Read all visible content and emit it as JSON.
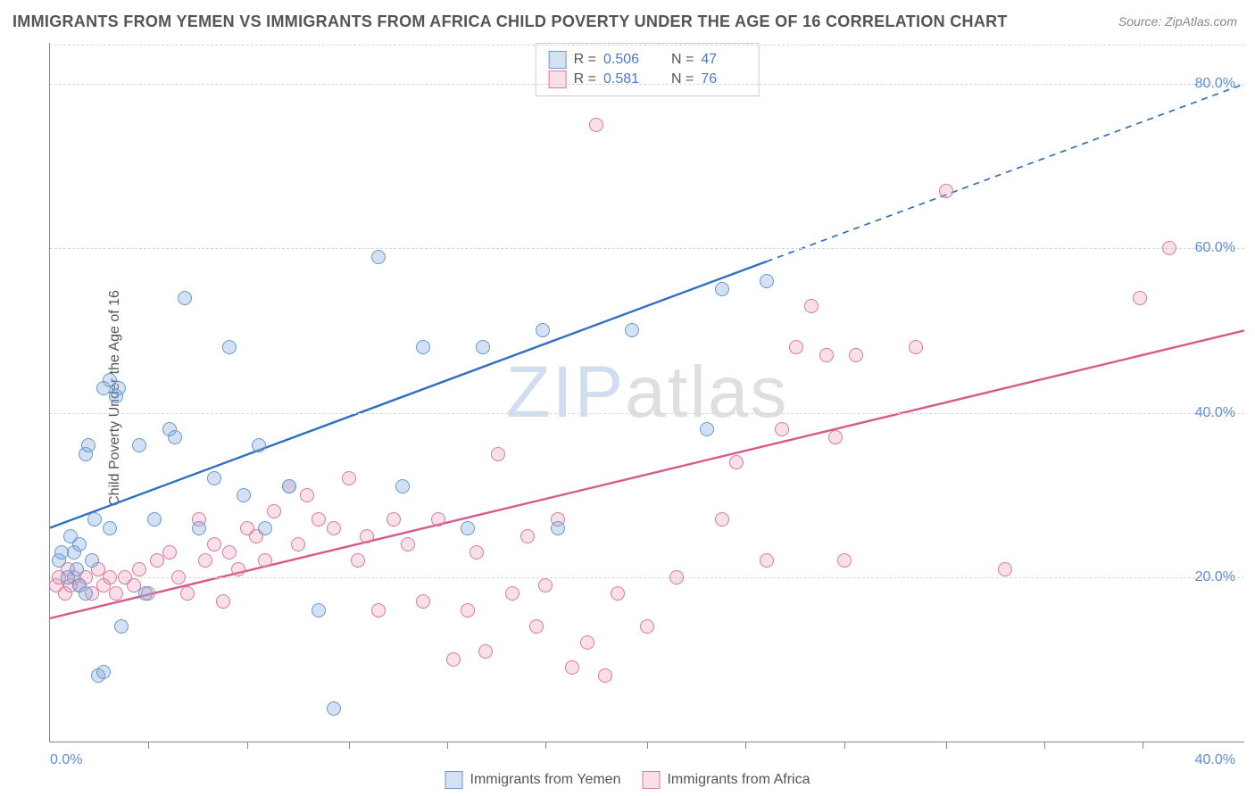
{
  "title": "IMMIGRANTS FROM YEMEN VS IMMIGRANTS FROM AFRICA CHILD POVERTY UNDER THE AGE OF 16 CORRELATION CHART",
  "source": "Source: ZipAtlas.com",
  "y_axis_label": "Child Poverty Under the Age of 16",
  "watermark_a": "ZIP",
  "watermark_b": "atlas",
  "chart": {
    "type": "scatter",
    "background_color": "#ffffff",
    "grid_color": "#d8d8d8",
    "axis_color": "#888888",
    "tick_label_color": "#5b8dd6",
    "tick_label_fontsize": 16,
    "title_fontsize": 18,
    "title_color": "#555555",
    "xlim": [
      0,
      40
    ],
    "ylim": [
      0,
      85
    ],
    "y_ticks": [
      20,
      40,
      60,
      80
    ],
    "y_tick_labels": [
      "20.0%",
      "40.0%",
      "60.0%",
      "80.0%"
    ],
    "x_ticks": [
      3.3,
      6.6,
      10,
      13.3,
      16.6,
      20,
      23.3,
      26.6,
      30,
      33.3,
      36.6
    ],
    "x_end_labels": [
      "0.0%",
      "40.0%"
    ],
    "marker_radius": 8,
    "marker_stroke_width": 1.2,
    "series": [
      {
        "name": "Immigrants from Yemen",
        "fill": "rgba(130,170,220,0.35)",
        "stroke": "#6699cc",
        "trend_color": "#2f6fc2",
        "trend_width": 2.4,
        "trend_dash_after_x": 24,
        "r_label": "R =",
        "r_value": "0.506",
        "n_label": "N =",
        "n_value": "47",
        "trend": {
          "x1": 0,
          "y1": 26,
          "x2": 40,
          "y2": 80
        },
        "points": [
          [
            0.3,
            22
          ],
          [
            0.4,
            23
          ],
          [
            0.6,
            20
          ],
          [
            0.7,
            25
          ],
          [
            0.8,
            23
          ],
          [
            0.9,
            21
          ],
          [
            1.0,
            24
          ],
          [
            1.2,
            35
          ],
          [
            1.3,
            36
          ],
          [
            1.5,
            27
          ],
          [
            1.8,
            43
          ],
          [
            2.0,
            44
          ],
          [
            2.2,
            42
          ],
          [
            2.3,
            43
          ],
          [
            1.0,
            19
          ],
          [
            1.2,
            18
          ],
          [
            1.4,
            22
          ],
          [
            1.6,
            8
          ],
          [
            1.8,
            8.5
          ],
          [
            2.0,
            26
          ],
          [
            2.4,
            14
          ],
          [
            3.0,
            36
          ],
          [
            3.2,
            18
          ],
          [
            3.5,
            27
          ],
          [
            4.0,
            38
          ],
          [
            4.2,
            37
          ],
          [
            4.5,
            54
          ],
          [
            5.0,
            26
          ],
          [
            5.5,
            32
          ],
          [
            6.0,
            48
          ],
          [
            6.5,
            30
          ],
          [
            7.0,
            36
          ],
          [
            7.2,
            26
          ],
          [
            8.0,
            31
          ],
          [
            9.0,
            16
          ],
          [
            9.5,
            4
          ],
          [
            11.0,
            59
          ],
          [
            11.8,
            31
          ],
          [
            12.5,
            48
          ],
          [
            14.0,
            26
          ],
          [
            14.5,
            48
          ],
          [
            16.5,
            50
          ],
          [
            17.0,
            26
          ],
          [
            19.5,
            50
          ],
          [
            22.0,
            38
          ],
          [
            22.5,
            55
          ],
          [
            24.0,
            56
          ]
        ]
      },
      {
        "name": "Immigrants from Africa",
        "fill": "rgba(235,150,175,0.30)",
        "stroke": "#d97a99",
        "trend_color": "#d85a85",
        "trend_width": 2.4,
        "r_label": "R =",
        "r_value": "0.581",
        "n_label": "N =",
        "n_value": "76",
        "trend": {
          "x1": 0,
          "y1": 15,
          "x2": 40,
          "y2": 50
        },
        "points": [
          [
            0.2,
            19
          ],
          [
            0.3,
            20
          ],
          [
            0.5,
            18
          ],
          [
            0.6,
            21
          ],
          [
            0.7,
            19
          ],
          [
            0.8,
            20
          ],
          [
            1.0,
            19
          ],
          [
            1.2,
            20
          ],
          [
            1.4,
            18
          ],
          [
            1.6,
            21
          ],
          [
            1.8,
            19
          ],
          [
            2.0,
            20
          ],
          [
            2.2,
            18
          ],
          [
            2.5,
            20
          ],
          [
            2.8,
            19
          ],
          [
            3.0,
            21
          ],
          [
            3.3,
            18
          ],
          [
            3.6,
            22
          ],
          [
            4.0,
            23
          ],
          [
            4.3,
            20
          ],
          [
            4.6,
            18
          ],
          [
            5.0,
            27
          ],
          [
            5.2,
            22
          ],
          [
            5.5,
            24
          ],
          [
            5.8,
            17
          ],
          [
            6.0,
            23
          ],
          [
            6.3,
            21
          ],
          [
            6.6,
            26
          ],
          [
            6.9,
            25
          ],
          [
            7.2,
            22
          ],
          [
            7.5,
            28
          ],
          [
            8.0,
            31
          ],
          [
            8.3,
            24
          ],
          [
            8.6,
            30
          ],
          [
            9.0,
            27
          ],
          [
            9.5,
            26
          ],
          [
            10.0,
            32
          ],
          [
            10.3,
            22
          ],
          [
            10.6,
            25
          ],
          [
            11.0,
            16
          ],
          [
            11.5,
            27
          ],
          [
            12.0,
            24
          ],
          [
            12.5,
            17
          ],
          [
            13.0,
            27
          ],
          [
            13.5,
            10
          ],
          [
            14.0,
            16
          ],
          [
            14.3,
            23
          ],
          [
            14.6,
            11
          ],
          [
            15.0,
            35
          ],
          [
            15.5,
            18
          ],
          [
            16.0,
            25
          ],
          [
            16.3,
            14
          ],
          [
            16.6,
            19
          ],
          [
            17.0,
            27
          ],
          [
            17.5,
            9
          ],
          [
            18.0,
            12
          ],
          [
            18.3,
            75
          ],
          [
            18.6,
            8
          ],
          [
            19.0,
            18
          ],
          [
            20.0,
            14
          ],
          [
            22.5,
            27
          ],
          [
            24.0,
            22
          ],
          [
            25.0,
            48
          ],
          [
            25.5,
            53
          ],
          [
            26.0,
            47
          ],
          [
            26.3,
            37
          ],
          [
            26.6,
            22
          ],
          [
            27.0,
            47
          ],
          [
            29.0,
            48
          ],
          [
            30.0,
            67
          ],
          [
            32.0,
            21
          ],
          [
            36.5,
            54
          ],
          [
            37.5,
            60
          ],
          [
            23.0,
            34
          ],
          [
            24.5,
            38
          ],
          [
            21.0,
            20
          ]
        ]
      }
    ]
  },
  "legend": {
    "series1_label": "Immigrants from Yemen",
    "series2_label": "Immigrants from Africa"
  }
}
